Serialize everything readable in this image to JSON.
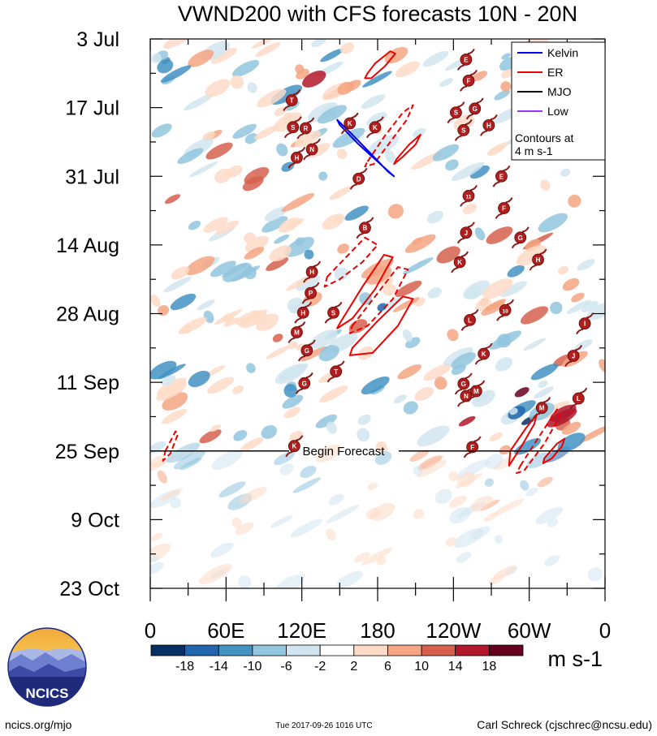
{
  "chart_data": {
    "type": "heatmap",
    "title": "VWND200 with CFS forecasts  10N - 20N",
    "xlabel": "",
    "ylabel": "",
    "x_ticks": [
      {
        "lon": 0,
        "label": "0"
      },
      {
        "lon": 60,
        "label": "60E"
      },
      {
        "lon": 120,
        "label": "120E"
      },
      {
        "lon": 180,
        "label": "180"
      },
      {
        "lon": 240,
        "label": "120W"
      },
      {
        "lon": 300,
        "label": "60W"
      },
      {
        "lon": 360,
        "label": "0"
      }
    ],
    "xlim": [
      0,
      360
    ],
    "y_ticks": [
      {
        "day": 0,
        "label": "3 Jul"
      },
      {
        "day": 14,
        "label": "17 Jul"
      },
      {
        "day": 28,
        "label": "31 Jul"
      },
      {
        "day": 42,
        "label": "14 Aug"
      },
      {
        "day": 56,
        "label": "28 Aug"
      },
      {
        "day": 70,
        "label": "11 Sep"
      },
      {
        "day": 84,
        "label": "25 Sep"
      },
      {
        "day": 98,
        "label": "9 Oct"
      },
      {
        "day": 112,
        "label": "23 Oct"
      }
    ],
    "ylim": [
      0,
      112
    ],
    "forecast": {
      "day": 84,
      "label": "Begin Forecast"
    },
    "colorbar": {
      "labels": [
        "-18",
        "-14",
        "-10",
        "-6",
        "-2",
        "2",
        "6",
        "10",
        "14",
        "18"
      ],
      "colors": [
        "#053061",
        "#2166ac",
        "#4393c3",
        "#92c5de",
        "#d1e5f0",
        "#ffffff",
        "#fddbc7",
        "#f4a582",
        "#d6604d",
        "#b2182b",
        "#67001f"
      ],
      "units": "m s-1"
    },
    "legend": {
      "items": [
        {
          "label": "Kelvin",
          "color": "#0000ee"
        },
        {
          "label": "ER",
          "color": "#ee0000"
        },
        {
          "label": "MJO",
          "color": "#000000"
        },
        {
          "label": "Low",
          "color": "#9b30ff"
        }
      ],
      "note_line1": "Contours at",
      "note_line2": "4 m s-1",
      "position": "top-right"
    },
    "kelvin_contours": [
      {
        "lon": [
          148,
          160,
          175,
          188,
          193,
          180,
          165,
          150
        ],
        "day": [
          16.5,
          19.5,
          23.5,
          27.0,
          28.0,
          25.0,
          21.5,
          17.5
        ]
      }
    ],
    "er_contours": [
      {
        "lon": [
          172,
          178,
          190,
          194,
          186,
          175,
          170
        ],
        "day": [
          7.0,
          5.0,
          2.5,
          3.0,
          5.5,
          8.0,
          8.0
        ],
        "dashed": false
      },
      {
        "lon": [
          172,
          185,
          200,
          208,
          203,
          190,
          177,
          170
        ],
        "day": [
          25.0,
          20.0,
          15.0,
          13.5,
          16.5,
          21.0,
          25.5,
          26.0
        ],
        "dashed": true
      },
      {
        "lon": [
          195,
          205,
          214,
          210,
          200,
          193
        ],
        "day": [
          24.5,
          21.5,
          19.5,
          21.5,
          24.0,
          25.5
        ],
        "dashed": false
      },
      {
        "lon": [
          150,
          168,
          185,
          192,
          178,
          160,
          148
        ],
        "day": [
          58.0,
          50.5,
          44.0,
          44.5,
          51.0,
          57.0,
          59.0
        ],
        "dashed": false
      },
      {
        "lon": [
          140,
          155,
          170,
          180,
          168,
          150,
          138
        ],
        "day": [
          48.5,
          44.5,
          40.5,
          42.0,
          45.5,
          49.0,
          50.5
        ],
        "dashed": true
      },
      {
        "lon": [
          160,
          178,
          196,
          204,
          192,
          172,
          158
        ],
        "day": [
          58.5,
          52.5,
          46.5,
          47.0,
          53.0,
          58.5,
          60.0
        ],
        "dashed": true
      },
      {
        "lon": [
          160,
          180,
          200,
          208,
          196,
          176,
          158
        ],
        "day": [
          63.0,
          57.5,
          52.5,
          53.0,
          58.5,
          64.0,
          64.5
        ],
        "dashed": false
      },
      {
        "lon": [
          285,
          297,
          306,
          304,
          294,
          284
        ],
        "day": [
          84.0,
          79.5,
          76.5,
          78.5,
          83.0,
          87.0
        ],
        "dashed": false
      },
      {
        "lon": [
          293,
          308,
          322,
          324,
          312,
          296,
          290
        ],
        "day": [
          87.0,
          81.0,
          75.5,
          77.0,
          82.5,
          88.0,
          88.5
        ],
        "dashed": true
      },
      {
        "lon": [
          312,
          322,
          328,
          326,
          318,
          311
        ],
        "day": [
          85.5,
          82.5,
          81.5,
          83.0,
          85.5,
          86.5
        ],
        "dashed": false
      },
      {
        "lon": [
          12,
          20,
          22,
          16,
          10
        ],
        "day": [
          84.0,
          80.0,
          80.5,
          84.5,
          86.0
        ],
        "dashed": true
      }
    ],
    "storm_symbols": [
      {
        "lon": 250,
        "day": 4.2,
        "label": "E"
      },
      {
        "lon": 252,
        "day": 8.5,
        "label": "F"
      },
      {
        "lon": 112,
        "day": 12.5,
        "label": "T"
      },
      {
        "lon": 257,
        "day": 14.2,
        "label": "G"
      },
      {
        "lon": 242,
        "day": 15.0,
        "label": "S"
      },
      {
        "lon": 268,
        "day": 17.6,
        "label": "H"
      },
      {
        "lon": 113,
        "day": 18.0,
        "label": "S"
      },
      {
        "lon": 123,
        "day": 18.2,
        "label": "R"
      },
      {
        "lon": 158,
        "day": 17.2,
        "label": "K"
      },
      {
        "lon": 178,
        "day": 18.0,
        "label": "K"
      },
      {
        "lon": 248,
        "day": 18.6,
        "label": "S"
      },
      {
        "lon": 128,
        "day": 22.5,
        "label": "N"
      },
      {
        "lon": 116,
        "day": 24.2,
        "label": "H"
      },
      {
        "lon": 165,
        "day": 28.5,
        "label": "D"
      },
      {
        "lon": 278,
        "day": 28.0,
        "label": "E"
      },
      {
        "lon": 252,
        "day": 32.0,
        "label": "11"
      },
      {
        "lon": 280,
        "day": 34.5,
        "label": "F"
      },
      {
        "lon": 170,
        "day": 38.5,
        "label": "B"
      },
      {
        "lon": 250,
        "day": 39.5,
        "label": "J"
      },
      {
        "lon": 293,
        "day": 40.5,
        "label": "G"
      },
      {
        "lon": 128,
        "day": 47.5,
        "label": "H"
      },
      {
        "lon": 245,
        "day": 45.5,
        "label": "K"
      },
      {
        "lon": 307,
        "day": 45.0,
        "label": "H"
      },
      {
        "lon": 127,
        "day": 51.8,
        "label": "P"
      },
      {
        "lon": 145,
        "day": 55.8,
        "label": "S"
      },
      {
        "lon": 281,
        "day": 55.3,
        "label": "10"
      },
      {
        "lon": 253,
        "day": 57.3,
        "label": "L"
      },
      {
        "lon": 121,
        "day": 55.8,
        "label": "H"
      },
      {
        "lon": 116,
        "day": 59.8,
        "label": "M"
      },
      {
        "lon": 124,
        "day": 63.5,
        "label": "G"
      },
      {
        "lon": 264,
        "day": 64.2,
        "label": "K"
      },
      {
        "lon": 335,
        "day": 64.6,
        "label": "J"
      },
      {
        "lon": 344,
        "day": 58.0,
        "label": "I"
      },
      {
        "lon": 147,
        "day": 67.8,
        "label": "T"
      },
      {
        "lon": 122,
        "day": 70.2,
        "label": "G"
      },
      {
        "lon": 248,
        "day": 70.3,
        "label": "G"
      },
      {
        "lon": 250,
        "day": 72.8,
        "label": "N"
      },
      {
        "lon": 258,
        "day": 71.8,
        "label": "M"
      },
      {
        "lon": 310,
        "day": 75.2,
        "label": "M"
      },
      {
        "lon": 339,
        "day": 73.3,
        "label": "L"
      },
      {
        "lon": 114,
        "day": 83.0,
        "label": "K"
      },
      {
        "lon": 255,
        "day": 83.2,
        "label": "F"
      }
    ],
    "shading_note": "200-hPa meridional wind anomalies shaded per colorbar; bands of alternating positive/negative values tilted eastward with time"
  },
  "footer": {
    "site": "ncics.org/mjo",
    "timestamp": "Tue 2017-09-26 1016 UTC",
    "author": "Carl Schreck (cjschrec@ncsu.edu)",
    "logo_text": "NCICS"
  }
}
